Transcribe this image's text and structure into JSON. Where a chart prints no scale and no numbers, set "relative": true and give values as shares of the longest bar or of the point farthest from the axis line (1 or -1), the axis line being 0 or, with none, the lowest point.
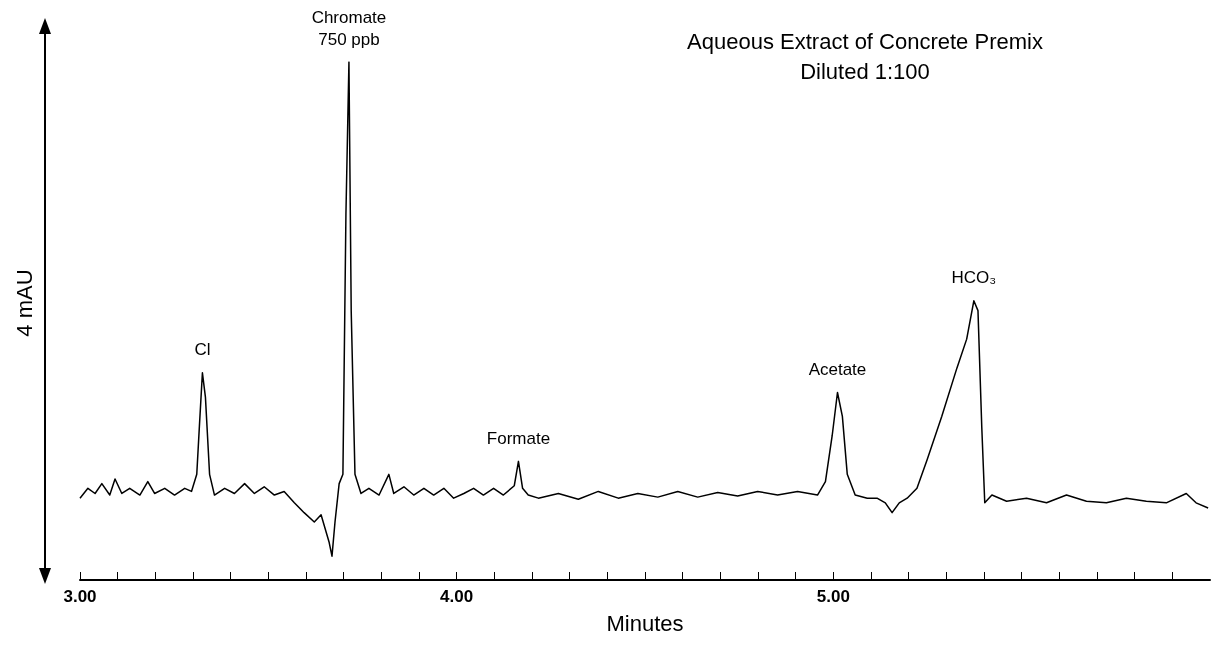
{
  "chart_data": {
    "type": "line",
    "title": "Aqueous Extract of Concrete Premix",
    "subtitle": "Diluted 1:100",
    "xlabel": "Minutes",
    "ylabel": "4 mAU",
    "relative": true,
    "color": "#000000",
    "marker": "none",
    "line_style": "solid",
    "grid": false,
    "xlim": [
      3,
      6
    ],
    "xticks": [
      {
        "value": 3,
        "label": "3.00"
      },
      {
        "value": 3.1,
        "label": null
      },
      {
        "value": 3.2,
        "label": null
      },
      {
        "value": 3.3,
        "label": null
      },
      {
        "value": 3.4,
        "label": null
      },
      {
        "value": 3.5,
        "label": null
      },
      {
        "value": 3.6,
        "label": null
      },
      {
        "value": 3.7,
        "label": null
      },
      {
        "value": 3.8,
        "label": null
      },
      {
        "value": 3.9,
        "label": null
      },
      {
        "value": 4,
        "label": "4.00"
      },
      {
        "value": 4.1,
        "label": null
      },
      {
        "value": 4.2,
        "label": null
      },
      {
        "value": 4.3,
        "label": null
      },
      {
        "value": 4.4,
        "label": null
      },
      {
        "value": 4.5,
        "label": null
      },
      {
        "value": 4.6,
        "label": null
      },
      {
        "value": 4.7,
        "label": null
      },
      {
        "value": 4.8,
        "label": null
      },
      {
        "value": 4.9,
        "label": null
      },
      {
        "value": 5,
        "label": "5.00"
      },
      {
        "value": 5.1,
        "label": null
      },
      {
        "value": 5.2,
        "label": null
      },
      {
        "value": 5.3,
        "label": null
      },
      {
        "value": 5.4,
        "label": null
      },
      {
        "value": 5.5,
        "label": null
      },
      {
        "value": 5.6,
        "label": null
      },
      {
        "value": 5.7,
        "label": null
      },
      {
        "value": 5.8,
        "label": null
      },
      {
        "value": 5.9,
        "label": null
      }
    ],
    "x": [
      3.0,
      3.021,
      3.04,
      3.058,
      3.079,
      3.093,
      3.111,
      3.132,
      3.159,
      3.18,
      3.198,
      3.225,
      3.251,
      3.278,
      3.296,
      3.31,
      3.317,
      3.325,
      3.333,
      3.344,
      3.357,
      3.384,
      3.41,
      3.437,
      3.463,
      3.489,
      3.516,
      3.542,
      3.569,
      3.595,
      3.622,
      3.64,
      3.661,
      3.669,
      3.677,
      3.688,
      3.698,
      3.706,
      3.714,
      3.72,
      3.73,
      3.746,
      3.767,
      3.794,
      3.82,
      3.833,
      3.86,
      3.886,
      3.913,
      3.939,
      3.966,
      3.992,
      4.019,
      4.045,
      4.071,
      4.098,
      4.124,
      4.153,
      4.164,
      4.175,
      4.19,
      4.217,
      4.27,
      4.323,
      4.376,
      4.429,
      4.481,
      4.534,
      4.587,
      4.64,
      4.693,
      4.746,
      4.799,
      4.852,
      4.905,
      4.958,
      4.979,
      4.997,
      5.011,
      5.024,
      5.037,
      5.058,
      5.09,
      5.116,
      5.138,
      5.156,
      5.175,
      5.196,
      5.222,
      5.249,
      5.288,
      5.328,
      5.354,
      5.373,
      5.384,
      5.394,
      5.402,
      5.421,
      5.46,
      5.513,
      5.566,
      5.619,
      5.672,
      5.725,
      5.778,
      5.831,
      5.884,
      5.937,
      5.963,
      5.995
    ],
    "values": [
      0.158,
      0.177,
      0.167,
      0.186,
      0.164,
      0.195,
      0.167,
      0.177,
      0.164,
      0.19,
      0.167,
      0.177,
      0.164,
      0.177,
      0.171,
      0.204,
      0.297,
      0.4,
      0.353,
      0.204,
      0.164,
      0.177,
      0.167,
      0.186,
      0.167,
      0.18,
      0.164,
      0.171,
      0.149,
      0.13,
      0.112,
      0.126,
      0.074,
      0.046,
      0.112,
      0.186,
      0.204,
      0.706,
      1,
      0.52,
      0.204,
      0.167,
      0.177,
      0.164,
      0.204,
      0.167,
      0.18,
      0.164,
      0.177,
      0.164,
      0.177,
      0.158,
      0.167,
      0.177,
      0.164,
      0.177,
      0.164,
      0.182,
      0.229,
      0.177,
      0.164,
      0.158,
      0.167,
      0.156,
      0.171,
      0.158,
      0.167,
      0.16,
      0.171,
      0.16,
      0.169,
      0.162,
      0.171,
      0.164,
      0.171,
      0.164,
      0.19,
      0.279,
      0.362,
      0.316,
      0.204,
      0.164,
      0.158,
      0.158,
      0.149,
      0.13,
      0.149,
      0.158,
      0.177,
      0.232,
      0.316,
      0.409,
      0.465,
      0.539,
      0.52,
      0.297,
      0.149,
      0.164,
      0.152,
      0.158,
      0.149,
      0.164,
      0.152,
      0.149,
      0.158,
      0.152,
      0.149,
      0.167,
      0.149,
      0.139
    ],
    "annotations": [
      {
        "text": "Cl",
        "x": 3.325,
        "y": 0.4
      },
      {
        "text": "Chromate\n750 ppb",
        "x": 3.714,
        "y": 1
      },
      {
        "text": "Formate",
        "x": 4.164,
        "y": 0.229
      },
      {
        "text": "Acetate",
        "x": 5.011,
        "y": 0.362
      },
      {
        "text": "HCO₃",
        "x": 5.373,
        "y": 0.539
      }
    ]
  }
}
